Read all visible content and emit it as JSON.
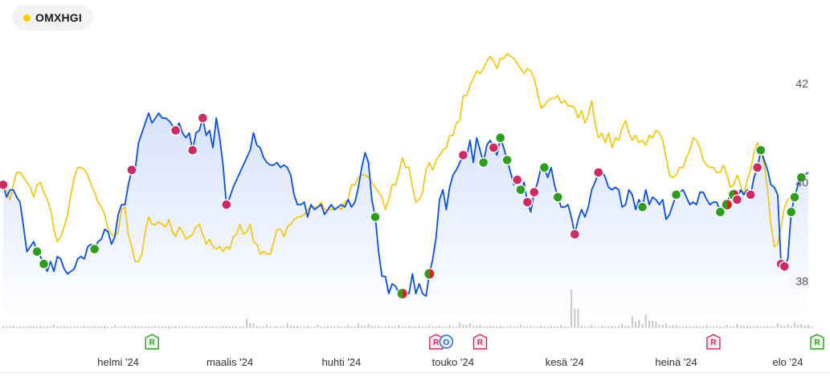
{
  "legend": {
    "label": "OMXHGI",
    "dot_color": "#ffcc00"
  },
  "chart_data": {
    "type": "line",
    "y_ticks": [
      "38",
      "40",
      "42"
    ],
    "ylim": [
      37.2,
      43.2
    ],
    "x_ticks": [
      "helmi '24",
      "maalis '24",
      "huhti '24",
      "touko '24",
      "kesä '24",
      "heinä '24",
      "elo '24"
    ],
    "x_tick_index": [
      34,
      67,
      100,
      133,
      166,
      199,
      232
    ],
    "n_points": 240,
    "series": [
      {
        "key": "stock",
        "color": "#0a4fe0",
        "values": [
          39.95,
          39.7,
          39.85,
          39.85,
          39.7,
          39.6,
          39.1,
          38.6,
          38.7,
          38.8,
          38.6,
          38.5,
          38.35,
          38.2,
          38.4,
          38.2,
          38.5,
          38.45,
          38.25,
          38.15,
          38.2,
          38.25,
          38.45,
          38.5,
          38.45,
          38.7,
          38.75,
          38.65,
          38.8,
          38.85,
          39.05,
          39.0,
          38.75,
          38.9,
          39.35,
          39.55,
          39.55,
          39.95,
          40.25,
          40.25,
          40.8,
          41.0,
          41.2,
          41.4,
          41.2,
          41.3,
          41.4,
          41.3,
          41.3,
          41.25,
          41.15,
          41.05,
          41.2,
          41.0,
          40.9,
          41.0,
          40.65,
          41.0,
          41.05,
          41.3,
          40.95,
          41.05,
          40.7,
          41.3,
          40.9,
          40.35,
          39.55,
          39.7,
          39.9,
          40.05,
          40.2,
          40.35,
          40.5,
          40.65,
          41.0,
          40.75,
          40.7,
          40.5,
          40.4,
          40.35,
          40.35,
          40.4,
          40.3,
          40.35,
          40.3,
          40.15,
          39.75,
          39.55,
          39.55,
          39.6,
          39.3,
          39.55,
          39.45,
          39.5,
          39.55,
          39.35,
          39.45,
          39.55,
          39.45,
          39.5,
          39.55,
          39.5,
          39.65,
          39.5,
          39.6,
          39.9,
          40.3,
          40.6,
          40.4,
          39.65,
          39.3,
          38.6,
          38.1,
          38.1,
          37.75,
          37.95,
          37.9,
          37.75,
          37.75,
          37.8,
          37.75,
          38.15,
          37.75,
          37.95,
          37.75,
          37.7,
          38.15,
          38.45,
          38.9,
          39.65,
          39.85,
          39.45,
          39.9,
          40.15,
          40.25,
          40.4,
          40.55,
          40.5,
          40.85,
          40.4,
          40.9,
          40.65,
          40.4,
          40.75,
          40.85,
          40.7,
          40.55,
          40.9,
          40.7,
          40.45,
          40.2,
          39.95,
          40.05,
          39.85,
          40.0,
          39.6,
          39.4,
          39.8,
          40.0,
          40.3,
          40.3,
          40.1,
          40.3,
          39.95,
          39.7,
          39.5,
          39.5,
          39.55,
          39.3,
          38.95,
          39.25,
          39.45,
          39.3,
          39.5,
          39.85,
          40.0,
          40.2,
          40.25,
          40.1,
          39.9,
          39.85,
          39.9,
          39.85,
          39.5,
          39.55,
          39.85,
          39.75,
          39.45,
          39.65,
          39.5,
          39.85,
          39.55,
          39.7,
          39.65,
          39.55,
          39.65,
          39.25,
          39.35,
          39.55,
          39.75,
          39.8,
          39.85,
          39.7,
          39.55,
          39.6,
          39.55,
          39.8,
          39.8,
          39.65,
          39.55,
          39.6,
          39.6,
          39.4,
          39.6,
          39.55,
          39.8,
          39.75,
          39.65,
          39.85,
          39.75,
          39.85,
          39.75,
          40.1,
          40.3,
          40.65,
          40.45,
          40.25,
          39.95,
          39.9,
          39.75,
          38.35,
          38.3,
          38.45,
          39.4,
          39.7,
          39.95,
          40.1,
          40.15,
          40.2
        ]
      },
      {
        "key": "index",
        "color": "#f5c400",
        "values": [
          40.0,
          39.85,
          39.65,
          39.95,
          40.2,
          40.2,
          40.1,
          40.0,
          39.9,
          39.7,
          39.95,
          40.0,
          39.8,
          39.65,
          39.45,
          39.05,
          38.8,
          38.9,
          39.1,
          39.35,
          39.75,
          40.1,
          40.3,
          40.3,
          40.25,
          40.15,
          39.95,
          39.8,
          39.6,
          39.5,
          39.35,
          39.05,
          38.95,
          38.9,
          39.0,
          39.45,
          39.5,
          38.95,
          38.7,
          38.4,
          38.4,
          38.55,
          39.0,
          39.3,
          39.15,
          39.15,
          39.2,
          39.15,
          39.1,
          39.25,
          39.0,
          38.9,
          39.1,
          39.0,
          38.85,
          38.9,
          38.95,
          39.1,
          39.15,
          38.95,
          38.75,
          38.85,
          38.7,
          38.65,
          38.7,
          38.6,
          38.7,
          38.65,
          38.9,
          38.95,
          39.15,
          38.95,
          39.0,
          39.15,
          38.8,
          38.75,
          38.55,
          38.6,
          38.55,
          38.55,
          38.8,
          39.05,
          39.05,
          38.9,
          39.1,
          39.15,
          39.25,
          39.3,
          39.3,
          39.35,
          39.45,
          39.5,
          39.5,
          39.5,
          39.6,
          39.45,
          39.45,
          39.45,
          39.45,
          39.5,
          39.45,
          39.6,
          39.65,
          39.95,
          39.95,
          40.1,
          40.15,
          40.15,
          40.1,
          40.0,
          39.9,
          39.8,
          39.7,
          39.45,
          39.65,
          39.95,
          39.95,
          40.2,
          40.5,
          40.3,
          40.3,
          39.9,
          39.6,
          39.65,
          39.8,
          40.25,
          40.4,
          40.25,
          40.45,
          40.55,
          40.65,
          40.7,
          40.95,
          40.95,
          41.2,
          41.25,
          41.75,
          41.75,
          41.95,
          42.1,
          42.25,
          42.2,
          42.3,
          42.45,
          42.55,
          42.45,
          42.3,
          42.5,
          42.5,
          42.6,
          42.55,
          42.5,
          42.4,
          42.3,
          42.2,
          42.3,
          42.25,
          42.1,
          41.8,
          41.5,
          41.55,
          41.65,
          41.7,
          41.7,
          41.75,
          41.6,
          41.65,
          41.55,
          41.55,
          41.5,
          41.3,
          41.45,
          41.2,
          41.35,
          41.65,
          41.2,
          40.9,
          41.0,
          40.8,
          41.0,
          40.7,
          40.9,
          40.85,
          41.1,
          41.25,
          41.0,
          40.85,
          40.95,
          40.8,
          40.85,
          40.75,
          40.95,
          40.9,
          41.05,
          41.0,
          40.85,
          40.5,
          40.15,
          40.1,
          40.15,
          40.3,
          40.3,
          40.5,
          40.65,
          40.9,
          40.85,
          40.7,
          40.45,
          40.35,
          40.3,
          40.3,
          40.2,
          40.2,
          40.35,
          40.15,
          39.9,
          39.95,
          40.15,
          39.95,
          39.75,
          40.05,
          40.25,
          40.6,
          40.8,
          40.65,
          40.35,
          39.85,
          39.15,
          38.7,
          38.75,
          39.1,
          39.5,
          39.65,
          39.7,
          39.75,
          39.75
        ]
      }
    ],
    "markers": [
      {
        "i": 0,
        "c": "sell"
      },
      {
        "i": 10,
        "c": "buy"
      },
      {
        "i": 12,
        "c": "buy"
      },
      {
        "i": 27,
        "c": "buy"
      },
      {
        "i": 38,
        "c": "sell"
      },
      {
        "i": 51,
        "c": "sell"
      },
      {
        "i": 56,
        "c": "sell"
      },
      {
        "i": 59,
        "c": "sell"
      },
      {
        "i": 66,
        "c": "sell"
      },
      {
        "i": 110,
        "c": "buy"
      },
      {
        "i": 118,
        "c": "mixed"
      },
      {
        "i": 126,
        "c": "mixed"
      },
      {
        "i": 136,
        "c": "sell"
      },
      {
        "i": 142,
        "c": "buy"
      },
      {
        "i": 145,
        "c": "sell"
      },
      {
        "i": 147,
        "c": "buy"
      },
      {
        "i": 149,
        "c": "buy"
      },
      {
        "i": 152,
        "c": "sell"
      },
      {
        "i": 153,
        "c": "buy"
      },
      {
        "i": 155,
        "c": "sell"
      },
      {
        "i": 157,
        "c": "sell"
      },
      {
        "i": 160,
        "c": "buy"
      },
      {
        "i": 164,
        "c": "buy"
      },
      {
        "i": 169,
        "c": "sell"
      },
      {
        "i": 176,
        "c": "sell"
      },
      {
        "i": 189,
        "c": "buy"
      },
      {
        "i": 199,
        "c": "buy"
      },
      {
        "i": 212,
        "c": "buy"
      },
      {
        "i": 214,
        "c": "mixed"
      },
      {
        "i": 216,
        "c": "mixed"
      },
      {
        "i": 217,
        "c": "sell"
      },
      {
        "i": 221,
        "c": "sell"
      },
      {
        "i": 224,
        "c": "buy"
      },
      {
        "i": 230,
        "c": "sell"
      },
      {
        "i": 231,
        "c": "sell"
      },
      {
        "i": 236,
        "c": "buy"
      },
      {
        "i": 239,
        "c": "sell"
      },
      {
        "i": 233,
        "c": "buy"
      },
      {
        "i": 234,
        "c": "buy"
      },
      {
        "i": 223,
        "c": "sell"
      }
    ],
    "marker_colors": {
      "buy": "#2f9e1f",
      "sell": "#cc2b66",
      "mixed_left": "#2f9e1f",
      "mixed_right": "#e0201a"
    },
    "volume": [
      {
        "i": 0,
        "v": 2
      },
      {
        "i": 3,
        "v": 3
      },
      {
        "i": 6,
        "v": 2
      },
      {
        "i": 9,
        "v": 3
      },
      {
        "i": 12,
        "v": 2
      },
      {
        "i": 15,
        "v": 4
      },
      {
        "i": 18,
        "v": 3
      },
      {
        "i": 21,
        "v": 2
      },
      {
        "i": 24,
        "v": 3
      },
      {
        "i": 27,
        "v": 2
      },
      {
        "i": 30,
        "v": 3
      },
      {
        "i": 33,
        "v": 4
      },
      {
        "i": 36,
        "v": 3
      },
      {
        "i": 39,
        "v": 3
      },
      {
        "i": 42,
        "v": 2
      },
      {
        "i": 45,
        "v": 3
      },
      {
        "i": 48,
        "v": 2
      },
      {
        "i": 51,
        "v": 3
      },
      {
        "i": 54,
        "v": 3
      },
      {
        "i": 57,
        "v": 2
      },
      {
        "i": 60,
        "v": 3
      },
      {
        "i": 63,
        "v": 2
      },
      {
        "i": 66,
        "v": 3
      },
      {
        "i": 69,
        "v": 2
      },
      {
        "i": 72,
        "v": 12
      },
      {
        "i": 75,
        "v": 3
      },
      {
        "i": 78,
        "v": 4
      },
      {
        "i": 81,
        "v": 3
      },
      {
        "i": 84,
        "v": 6
      },
      {
        "i": 87,
        "v": 3
      },
      {
        "i": 90,
        "v": 3
      },
      {
        "i": 93,
        "v": 4
      },
      {
        "i": 96,
        "v": 3
      },
      {
        "i": 99,
        "v": 3
      },
      {
        "i": 102,
        "v": 4
      },
      {
        "i": 105,
        "v": 6
      },
      {
        "i": 108,
        "v": 5
      },
      {
        "i": 111,
        "v": 3
      },
      {
        "i": 114,
        "v": 3
      },
      {
        "i": 117,
        "v": 4
      },
      {
        "i": 120,
        "v": 3
      },
      {
        "i": 123,
        "v": 3
      },
      {
        "i": 126,
        "v": 4
      },
      {
        "i": 129,
        "v": 3
      },
      {
        "i": 132,
        "v": 4
      },
      {
        "i": 135,
        "v": 7
      },
      {
        "i": 138,
        "v": 6
      },
      {
        "i": 141,
        "v": 4
      },
      {
        "i": 144,
        "v": 3
      },
      {
        "i": 147,
        "v": 3
      },
      {
        "i": 150,
        "v": 3
      },
      {
        "i": 153,
        "v": 4
      },
      {
        "i": 156,
        "v": 3
      },
      {
        "i": 159,
        "v": 3
      },
      {
        "i": 162,
        "v": 3
      },
      {
        "i": 165,
        "v": 4
      },
      {
        "i": 168,
        "v": 48
      },
      {
        "i": 171,
        "v": 3
      },
      {
        "i": 174,
        "v": 4
      },
      {
        "i": 177,
        "v": 3
      },
      {
        "i": 180,
        "v": 3
      },
      {
        "i": 183,
        "v": 5
      },
      {
        "i": 186,
        "v": 15
      },
      {
        "i": 188,
        "v": 10
      },
      {
        "i": 190,
        "v": 17
      },
      {
        "i": 193,
        "v": 8
      },
      {
        "i": 196,
        "v": 6
      },
      {
        "i": 199,
        "v": 4
      },
      {
        "i": 202,
        "v": 3
      },
      {
        "i": 205,
        "v": 3
      },
      {
        "i": 208,
        "v": 4
      },
      {
        "i": 211,
        "v": 3
      },
      {
        "i": 214,
        "v": 4
      },
      {
        "i": 217,
        "v": 5
      },
      {
        "i": 220,
        "v": 3
      },
      {
        "i": 223,
        "v": 3
      },
      {
        "i": 226,
        "v": 3
      },
      {
        "i": 229,
        "v": 6
      },
      {
        "i": 232,
        "v": 5
      },
      {
        "i": 234,
        "v": 7
      },
      {
        "i": 236,
        "v": 5
      },
      {
        "i": 238,
        "v": 4
      }
    ],
    "event_badges": [
      {
        "i": 44,
        "letter": "R",
        "kind": "green"
      },
      {
        "i": 128,
        "letter": "R",
        "kind": "pink"
      },
      {
        "i": 131,
        "letter": "O",
        "kind": "blue"
      },
      {
        "i": 141,
        "letter": "R",
        "kind": "pink"
      },
      {
        "i": 210,
        "letter": "R",
        "kind": "pink"
      },
      {
        "i": 243,
        "letter": "R",
        "kind": "green"
      }
    ],
    "badge_colors": {
      "green": {
        "stroke": "#2f9e1f",
        "fill": "#eaf7e6",
        "text": "#2f9e1f"
      },
      "pink": {
        "stroke": "#cc2b66",
        "fill": "#fbe8ef",
        "text": "#cc2b66"
      },
      "blue": {
        "stroke": "#1f66d6",
        "fill": "#e8f0fb",
        "text": "#1f66d6"
      }
    },
    "area_fill_color": "#c9d8fb"
  }
}
